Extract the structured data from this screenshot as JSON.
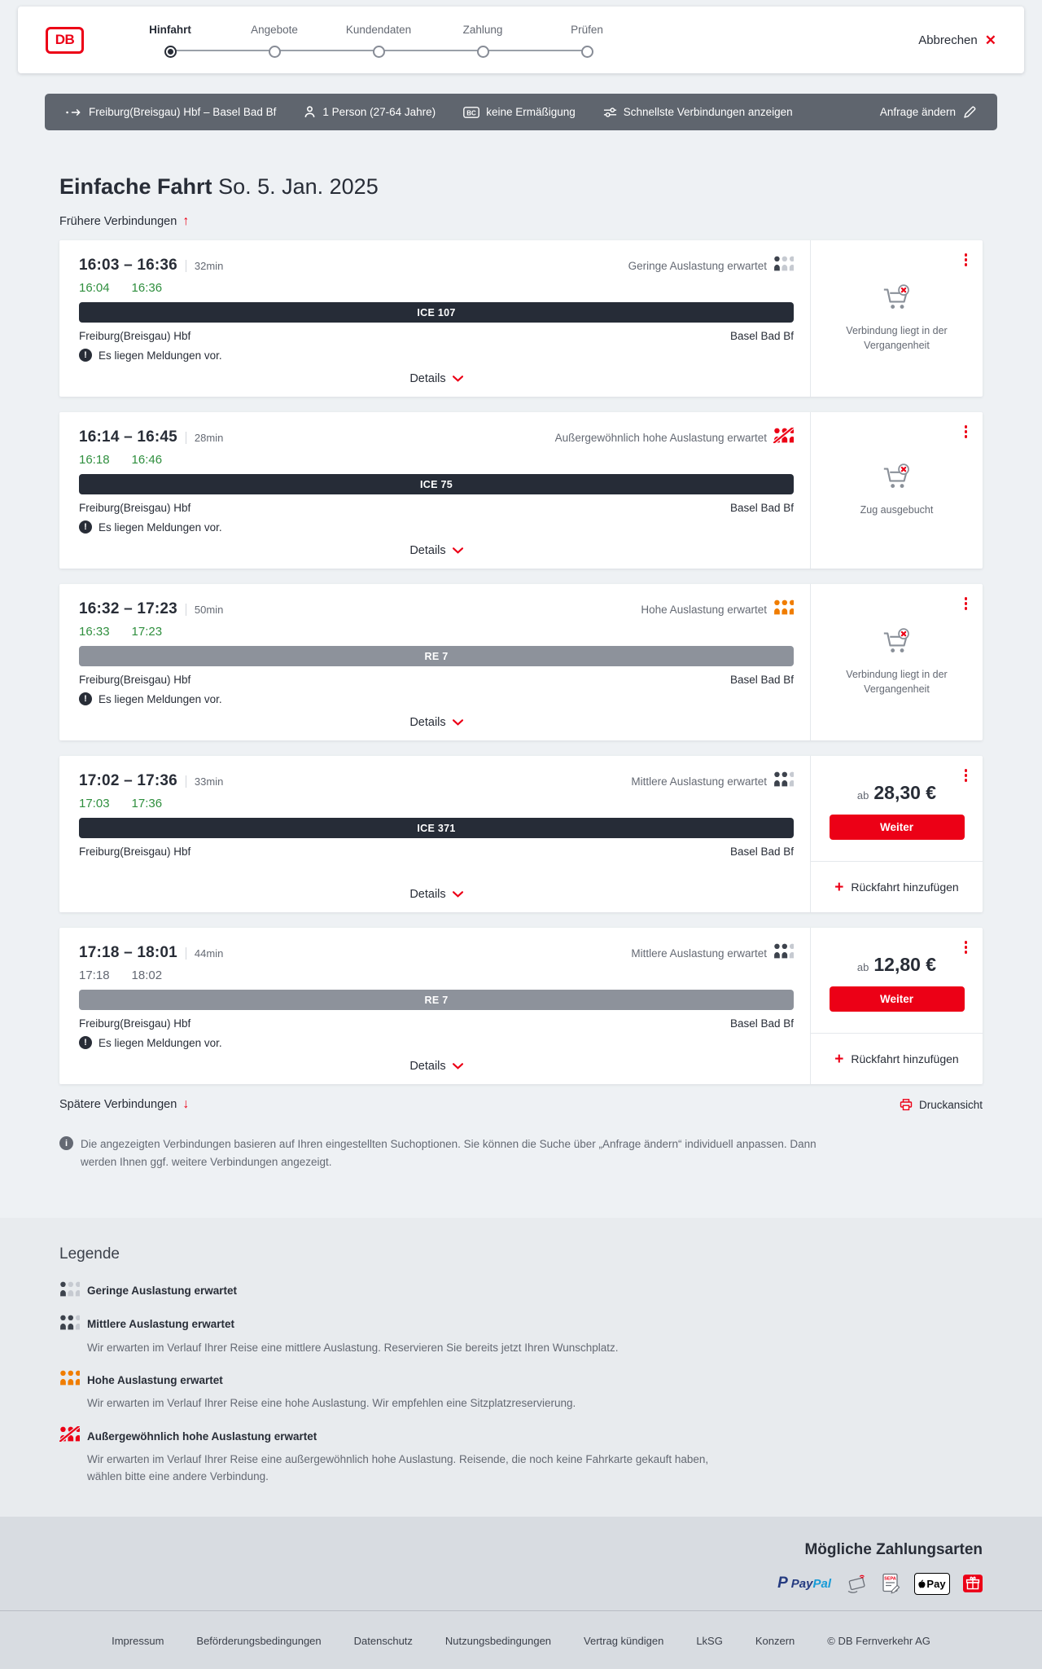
{
  "header": {
    "logo_text": "DB",
    "steps": [
      {
        "label": "Hinfahrt",
        "state": "active"
      },
      {
        "label": "Angebote",
        "state": "upcoming"
      },
      {
        "label": "Kundendaten",
        "state": "upcoming"
      },
      {
        "label": "Zahlung",
        "state": "upcoming"
      },
      {
        "label": "Prüfen",
        "state": "upcoming"
      }
    ],
    "cancel_label": "Abbrechen"
  },
  "summary_bar": {
    "route": "Freiburg(Breisgau) Hbf – Basel Bad Bf",
    "travelers": "1 Person (27-64 Jahre)",
    "discount": "keine Ermäßigung",
    "fastest": "Schnellste Verbindungen anzeigen",
    "change_request": "Anfrage ändern"
  },
  "results": {
    "title": "Einfache Fahrt",
    "date": "So. 5. Jan. 2025",
    "earlier_label": "Frühere Verbindungen",
    "later_label": "Spätere Verbindungen",
    "print_label": "Druckansicht",
    "info_note": "Die angezeigten Verbindungen basieren auf Ihren eingestellten Suchoptionen. Sie können die Suche über „Anfrage ändern“ individuell anpassen. Dann werden Ihnen ggf. weitere Verbindungen angezeigt."
  },
  "labels": {
    "messages": "Es liegen Meldungen vor.",
    "details": "Details",
    "weiter": "Weiter",
    "from_price": "ab",
    "add_return": "Rückfahrt hinzufügen"
  },
  "connections": [
    {
      "dep": "16:03",
      "arr": "16:36",
      "duration": "32min",
      "rt_dep": "16:04",
      "rt_arr": "16:36",
      "rt_status": "green",
      "train": "ICE 107",
      "train_class": "ice",
      "from": "Freiburg(Breisgau) Hbf",
      "to": "Basel Bad Bf",
      "occupancy": {
        "label": "Geringe Auslastung erwartet",
        "level": "low"
      },
      "messages": true,
      "side": {
        "type": "unavailable",
        "text": "Verbindung liegt in der Vergangenheit"
      }
    },
    {
      "dep": "16:14",
      "arr": "16:45",
      "duration": "28min",
      "rt_dep": "16:18",
      "rt_arr": "16:46",
      "rt_status": "green",
      "train": "ICE 75",
      "train_class": "ice",
      "from": "Freiburg(Breisgau) Hbf",
      "to": "Basel Bad Bf",
      "occupancy": {
        "label": "Außergewöhnlich hohe Auslastung erwartet",
        "level": "exceptional"
      },
      "messages": true,
      "side": {
        "type": "unavailable",
        "text": "Zug ausgebucht"
      }
    },
    {
      "dep": "16:32",
      "arr": "17:23",
      "duration": "50min",
      "rt_dep": "16:33",
      "rt_arr": "17:23",
      "rt_status": "green",
      "train": "RE 7",
      "train_class": "re",
      "from": "Freiburg(Breisgau) Hbf",
      "to": "Basel Bad Bf",
      "occupancy": {
        "label": "Hohe Auslastung erwartet",
        "level": "high"
      },
      "messages": true,
      "side": {
        "type": "unavailable",
        "text": "Verbindung liegt in der Vergangenheit"
      }
    },
    {
      "dep": "17:02",
      "arr": "17:36",
      "duration": "33min",
      "rt_dep": "17:03",
      "rt_arr": "17:36",
      "rt_status": "green",
      "train": "ICE 371",
      "train_class": "ice",
      "from": "Freiburg(Breisgau) Hbf",
      "to": "Basel Bad Bf",
      "occupancy": {
        "label": "Mittlere Auslastung erwartet",
        "level": "medium"
      },
      "messages": false,
      "side": {
        "type": "price",
        "price": "28,30 €"
      }
    },
    {
      "dep": "17:18",
      "arr": "18:01",
      "duration": "44min",
      "rt_dep": "17:18",
      "rt_arr": "18:02",
      "rt_status": "gray",
      "train": "RE 7",
      "train_class": "re",
      "from": "Freiburg(Breisgau) Hbf",
      "to": "Basel Bad Bf",
      "occupancy": {
        "label": "Mittlere Auslastung erwartet",
        "level": "medium"
      },
      "messages": true,
      "side": {
        "type": "price",
        "price": "12,80 €"
      }
    }
  ],
  "legend": {
    "title": "Legende",
    "items": [
      {
        "level": "low",
        "title": "Geringe Auslastung erwartet",
        "desc": ""
      },
      {
        "level": "medium",
        "title": "Mittlere Auslastung erwartet",
        "desc": "Wir erwarten im Verlauf Ihrer Reise eine mittlere Auslastung. Reservieren Sie bereits jetzt Ihren Wunschplatz."
      },
      {
        "level": "high",
        "title": "Hohe Auslastung erwartet",
        "desc": "Wir erwarten im Verlauf Ihrer Reise eine hohe Auslastung. Wir empfehlen eine Sitzplatzreservierung."
      },
      {
        "level": "exceptional",
        "title": "Außergewöhnlich hohe Auslastung erwartet",
        "desc": "Wir erwarten im Verlauf Ihrer Reise eine außergewöhnlich hohe Auslastung. Reisende, die noch keine Fahrkarte gekauft haben, wählen bitte eine andere Verbindung."
      }
    ]
  },
  "payments": {
    "title": "Mögliche Zahlungsarten",
    "paypal_word_1": "Pay",
    "paypal_word_2": "Pal",
    "paypal_mark": "P",
    "sepa_text": "SEPA",
    "applepay_text": "Pay"
  },
  "footer": {
    "links": [
      "Impressum",
      "Beförderungsbedingungen",
      "Datenschutz",
      "Nutzungsbedingungen",
      "Vertrag kündigen",
      "LkSG",
      "Konzern",
      "© DB Fernverkehr AG"
    ]
  },
  "colors": {
    "brand_red": "#ec0016",
    "coal": "#282d37",
    "toolbar_gray": "#5f656e",
    "on_time_green": "#2f8f3e",
    "occupancy_orange": "#f07d00"
  }
}
